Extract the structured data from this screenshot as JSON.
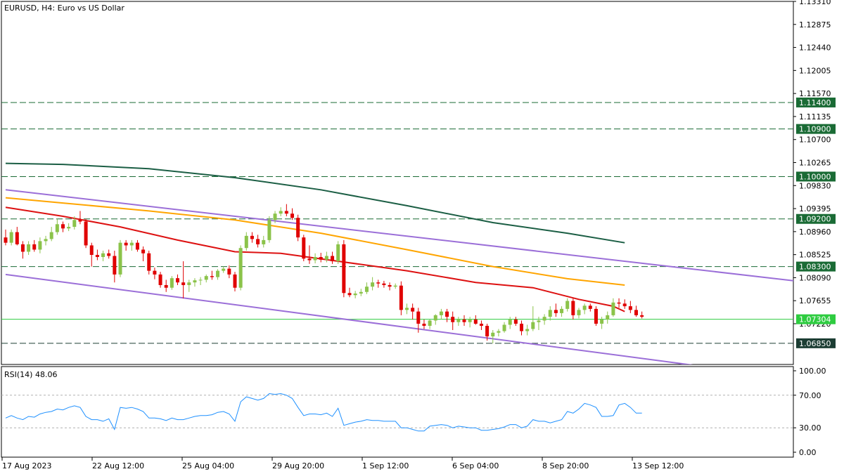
{
  "chart_data": {
    "type": "candlestick",
    "title": "EURUSD, H4:  Euro vs US Dollar",
    "price_ylim": [
      1.0645,
      1.1331
    ],
    "price_ticks": [
      "1.13310",
      "1.12875",
      "1.12440",
      "1.12005",
      "1.11570",
      "1.11135",
      "1.10700",
      "1.10265",
      "1.09830",
      "1.09395",
      "1.08960",
      "1.08525",
      "1.08090",
      "1.07655",
      "1.07220"
    ],
    "x_labels": [
      "17 Aug 2023",
      "22 Aug 12:00",
      "25 Aug 04:00",
      "29 Aug 20:00",
      "1 Sep 12:00",
      "6 Sep 04:00",
      "8 Sep 20:00",
      "13 Sep 12:00"
    ],
    "levels": [
      {
        "price": 1.114,
        "label": "1.11400",
        "style": "dashed",
        "color": "#1a6b35"
      },
      {
        "price": 1.109,
        "label": "1.10900",
        "style": "dashed",
        "color": "#1a6b35"
      },
      {
        "price": 1.1,
        "label": "1.10000",
        "style": "dashed",
        "color": "#1a6b35"
      },
      {
        "price": 1.092,
        "label": "1.09200",
        "style": "dashed",
        "color": "#1a6b35"
      },
      {
        "price": 1.083,
        "label": "1.08300",
        "style": "dashed",
        "color": "#1a6b35"
      },
      {
        "price": 1.07304,
        "label": "1.07304",
        "style": "solid",
        "color": "#2ecc40"
      },
      {
        "price": 1.0685,
        "label": "1.06850",
        "style": "dashed",
        "color": "#1c3d33"
      }
    ],
    "candle_colors": {
      "up": "#8bc34a",
      "down": "#e00000"
    },
    "candles": [
      [
        1.0885,
        1.09,
        1.087,
        1.0875
      ],
      [
        1.0875,
        1.09,
        1.087,
        1.0895
      ],
      [
        1.0895,
        1.0905,
        1.087,
        1.0872
      ],
      [
        1.0872,
        1.0878,
        1.0845,
        1.0858
      ],
      [
        1.0858,
        1.0878,
        1.0852,
        1.0872
      ],
      [
        1.0872,
        1.088,
        1.0858,
        1.0862
      ],
      [
        1.0862,
        1.0885,
        1.0855,
        1.0878
      ],
      [
        1.0878,
        1.0888,
        1.087,
        1.0882
      ],
      [
        1.0882,
        1.0905,
        1.0878,
        1.0895
      ],
      [
        1.0895,
        1.092,
        1.089,
        1.091
      ],
      [
        1.091,
        1.0915,
        1.0895,
        1.0902
      ],
      [
        1.0902,
        1.0912,
        1.0897,
        1.0905
      ],
      [
        1.0905,
        1.0925,
        1.09,
        1.0918
      ],
      [
        1.0918,
        1.0935,
        1.091,
        1.0915
      ],
      [
        1.0915,
        1.092,
        1.0865,
        1.087
      ],
      [
        1.087,
        1.0875,
        1.083,
        1.0852
      ],
      [
        1.0852,
        1.0862,
        1.0842,
        1.0848
      ],
      [
        1.0848,
        1.086,
        1.084,
        1.0855
      ],
      [
        1.0855,
        1.0862,
        1.0845,
        1.085
      ],
      [
        1.085,
        1.086,
        1.08,
        1.0815
      ],
      [
        1.0815,
        1.088,
        1.081,
        1.0875
      ],
      [
        1.0875,
        1.088,
        1.086,
        1.087
      ],
      [
        1.087,
        1.088,
        1.086,
        1.0875
      ],
      [
        1.0875,
        1.088,
        1.0858,
        1.0862
      ],
      [
        1.0862,
        1.0868,
        1.084,
        1.0855
      ],
      [
        1.0855,
        1.086,
        1.0815,
        1.0822
      ],
      [
        1.0822,
        1.0828,
        1.0806,
        1.0815
      ],
      [
        1.0815,
        1.082,
        1.079,
        1.0795
      ],
      [
        1.0795,
        1.0805,
        1.0782,
        1.079
      ],
      [
        1.079,
        1.0812,
        1.0786,
        1.0808
      ],
      [
        1.0808,
        1.0815,
        1.0795,
        1.08
      ],
      [
        1.08,
        1.084,
        1.077,
        1.0795
      ],
      [
        1.0795,
        1.0805,
        1.0782,
        1.08
      ],
      [
        1.08,
        1.0808,
        1.0792,
        1.0804
      ],
      [
        1.0804,
        1.081,
        1.0795,
        1.0805
      ],
      [
        1.0805,
        1.0815,
        1.08,
        1.0812
      ],
      [
        1.0812,
        1.0822,
        1.0805,
        1.081
      ],
      [
        1.081,
        1.0825,
        1.0805,
        1.0822
      ],
      [
        1.0822,
        1.083,
        1.0818,
        1.0826
      ],
      [
        1.0826,
        1.0832,
        1.0808,
        1.0815
      ],
      [
        1.0815,
        1.082,
        1.0783,
        1.079
      ],
      [
        1.079,
        1.087,
        1.0785,
        1.0865
      ],
      [
        1.0865,
        1.0895,
        1.086,
        1.0888
      ],
      [
        1.0888,
        1.0895,
        1.0875,
        1.0882
      ],
      [
        1.0882,
        1.089,
        1.0866,
        1.0872
      ],
      [
        1.0872,
        1.0888,
        1.0866,
        1.088
      ],
      [
        1.088,
        1.0925,
        1.0875,
        1.0918
      ],
      [
        1.0918,
        1.0935,
        1.0912,
        1.093
      ],
      [
        1.093,
        1.0942,
        1.0925,
        1.0935
      ],
      [
        1.0935,
        1.0948,
        1.0925,
        1.093
      ],
      [
        1.093,
        1.094,
        1.0918,
        1.0922
      ],
      [
        1.0922,
        1.0928,
        1.0878,
        1.0885
      ],
      [
        1.0885,
        1.089,
        1.084,
        1.0845
      ],
      [
        1.0845,
        1.087,
        1.0835,
        1.0842
      ],
      [
        1.0842,
        1.0855,
        1.0836,
        1.0848
      ],
      [
        1.0848,
        1.0856,
        1.0838,
        1.0843
      ],
      [
        1.0843,
        1.0858,
        1.0838,
        1.085
      ],
      [
        1.085,
        1.0858,
        1.0835,
        1.084
      ],
      [
        1.084,
        1.0878,
        1.0835,
        1.0872
      ],
      [
        1.0872,
        1.088,
        1.0772,
        1.078
      ],
      [
        1.078,
        1.079,
        1.0772,
        1.0776
      ],
      [
        1.0776,
        1.0784,
        1.077,
        1.0779
      ],
      [
        1.0779,
        1.0788,
        1.0774,
        1.0782
      ],
      [
        1.0782,
        1.08,
        1.0778,
        1.0792
      ],
      [
        1.0792,
        1.081,
        1.0785,
        1.08
      ],
      [
        1.08,
        1.0805,
        1.079,
        1.0798
      ],
      [
        1.0798,
        1.0803,
        1.079,
        1.0795
      ],
      [
        1.0795,
        1.08,
        1.0785,
        1.0792
      ],
      [
        1.0792,
        1.0798,
        1.0788,
        1.0794
      ],
      [
        1.0794,
        1.0802,
        1.0738,
        1.0748
      ],
      [
        1.0748,
        1.076,
        1.074,
        1.0752
      ],
      [
        1.0752,
        1.076,
        1.073,
        1.0745
      ],
      [
        1.0745,
        1.0752,
        1.0705,
        1.0722
      ],
      [
        1.0722,
        1.073,
        1.0712,
        1.0718
      ],
      [
        1.0718,
        1.073,
        1.0712,
        1.0728
      ],
      [
        1.0728,
        1.074,
        1.072,
        1.0738
      ],
      [
        1.0738,
        1.075,
        1.073,
        1.0745
      ],
      [
        1.0745,
        1.075,
        1.0725,
        1.0735
      ],
      [
        1.0735,
        1.0745,
        1.071,
        1.0725
      ],
      [
        1.0725,
        1.0735,
        1.0718,
        1.073
      ],
      [
        1.073,
        1.0738,
        1.0718,
        1.0725
      ],
      [
        1.0725,
        1.0735,
        1.0715,
        1.073
      ],
      [
        1.073,
        1.0738,
        1.072,
        1.0722
      ],
      [
        1.0722,
        1.0728,
        1.071,
        1.0718
      ],
      [
        1.0718,
        1.0722,
        1.069,
        1.0698
      ],
      [
        1.0698,
        1.071,
        1.0685,
        1.0705
      ],
      [
        1.0705,
        1.0712,
        1.0698,
        1.0708
      ],
      [
        1.0708,
        1.0725,
        1.0705,
        1.072
      ],
      [
        1.072,
        1.0735,
        1.0712,
        1.073
      ],
      [
        1.073,
        1.0735,
        1.0718,
        1.0722
      ],
      [
        1.0722,
        1.0728,
        1.07,
        1.0708
      ],
      [
        1.0708,
        1.072,
        1.07,
        1.0712
      ],
      [
        1.0712,
        1.0755,
        1.0708,
        1.0725
      ],
      [
        1.0725,
        1.0735,
        1.071,
        1.0728
      ],
      [
        1.0728,
        1.074,
        1.072,
        1.0735
      ],
      [
        1.0735,
        1.0755,
        1.0728,
        1.0748
      ],
      [
        1.0748,
        1.076,
        1.0735,
        1.0742
      ],
      [
        1.0742,
        1.0755,
        1.0735,
        1.075
      ],
      [
        1.075,
        1.077,
        1.0745,
        1.0765
      ],
      [
        1.0765,
        1.077,
        1.073,
        1.0738
      ],
      [
        1.0738,
        1.0752,
        1.0732,
        1.0748
      ],
      [
        1.0748,
        1.076,
        1.074,
        1.0756
      ],
      [
        1.0756,
        1.076,
        1.0745,
        1.075
      ],
      [
        1.075,
        1.0755,
        1.0718,
        1.0722
      ],
      [
        1.0722,
        1.0735,
        1.0712,
        1.073
      ],
      [
        1.073,
        1.0745,
        1.0722,
        1.0738
      ],
      [
        1.0738,
        1.077,
        1.0735,
        1.0762
      ],
      [
        1.0762,
        1.077,
        1.0752,
        1.076
      ],
      [
        1.076,
        1.0768,
        1.075,
        1.0755
      ],
      [
        1.0755,
        1.0765,
        1.0742,
        1.0748
      ],
      [
        1.0748,
        1.0756,
        1.0735,
        1.0738
      ],
      [
        1.0738,
        1.0745,
        1.0732,
        1.0735
      ]
    ],
    "moving_averages": [
      {
        "color": "#1b5e44",
        "points": [
          [
            0,
            1.1025
          ],
          [
            10,
            1.1023
          ],
          [
            25,
            1.1015
          ],
          [
            40,
            1.0998
          ],
          [
            55,
            1.0975
          ],
          [
            70,
            1.0945
          ],
          [
            85,
            1.0913
          ],
          [
            98,
            1.0893
          ],
          [
            108,
            1.0875
          ]
        ]
      },
      {
        "color": "#ffa500",
        "points": [
          [
            0,
            1.096
          ],
          [
            10,
            1.095
          ],
          [
            25,
            1.0935
          ],
          [
            40,
            1.0918
          ],
          [
            55,
            1.0893
          ],
          [
            70,
            1.0862
          ],
          [
            85,
            1.083
          ],
          [
            98,
            1.0807
          ],
          [
            108,
            1.0795
          ]
        ]
      },
      {
        "color": "#dd1111",
        "points": [
          [
            0,
            1.0942
          ],
          [
            10,
            1.0925
          ],
          [
            20,
            1.0905
          ],
          [
            30,
            1.088
          ],
          [
            40,
            1.0858
          ],
          [
            48,
            1.0855
          ],
          [
            58,
            1.084
          ],
          [
            70,
            1.0822
          ],
          [
            82,
            1.08
          ],
          [
            92,
            1.079
          ],
          [
            100,
            1.0768
          ],
          [
            106,
            1.0755
          ],
          [
            108,
            1.0745
          ]
        ]
      }
    ],
    "channel_lines": {
      "color": "#9b6fd8",
      "upper": [
        [
          0,
          1.0975
        ],
        [
          140,
          1.08
        ]
      ],
      "lower": [
        [
          0,
          1.0815
        ],
        [
          140,
          1.0615
        ]
      ]
    },
    "rsi": {
      "label": "RSI(14) 48.06",
      "ylim": [
        0,
        100
      ],
      "ticks": [
        "100.00",
        "70.00",
        "30.00",
        "0.00"
      ],
      "levels": [
        70,
        30
      ],
      "color": "#1e90ff",
      "values": [
        42,
        45,
        42,
        40,
        44,
        43,
        47,
        49,
        50,
        53,
        52,
        55,
        57,
        55,
        44,
        40,
        40,
        38,
        41,
        28,
        55,
        54,
        55,
        53,
        50,
        42,
        42,
        41,
        39,
        42,
        40,
        40,
        42,
        44,
        45,
        45,
        46,
        49,
        50,
        47,
        38,
        62,
        68,
        66,
        64,
        66,
        72,
        71,
        72,
        70,
        66,
        55,
        45,
        47,
        47,
        46,
        48,
        44,
        54,
        33,
        35,
        37,
        38,
        40,
        39,
        39,
        38,
        38,
        38,
        30,
        30,
        28,
        26,
        26,
        32,
        33,
        34,
        33,
        30,
        32,
        31,
        30,
        30,
        27,
        27,
        28,
        29,
        31,
        34,
        34,
        30,
        32,
        40,
        38,
        38,
        36,
        38,
        40,
        50,
        48,
        53,
        60,
        58,
        55,
        44,
        44,
        45,
        58,
        60,
        55,
        48,
        48
      ]
    }
  }
}
